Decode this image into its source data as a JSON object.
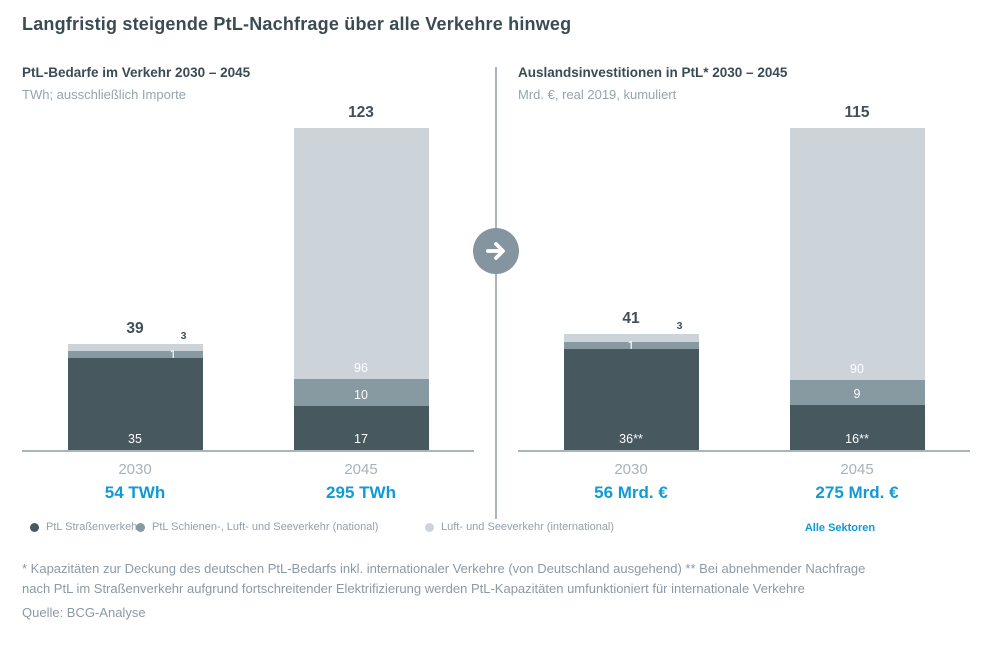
{
  "title": "Langfristig steigende PtL-Nachfrage über alle Verkehre hinweg",
  "colors": {
    "accent_blue": "#109ad6",
    "bar_dark": "#47585f",
    "bar_medium": "#8799a1",
    "bar_light": "#ccd4da",
    "axis_gray": "#a9b5bc",
    "arrow_circle_gray": "#8495a0",
    "heading_dark": "#3b4b53",
    "muted_gray": "#97a4ac"
  },
  "arrow_icon": "right-arrow",
  "chart_data": [
    {
      "type": "bar",
      "stacked": true,
      "title": "PtL-Bedarfe im Verkehr 2030 – 2045",
      "subtitle": "TWh; ausschließlich Importe",
      "unit": "TWh",
      "categories": [
        "2030",
        "2045"
      ],
      "series": [
        {
          "name": "PtL Straßenverkehr",
          "values": [
            35,
            17
          ]
        },
        {
          "name": "PtL Schienen-, Luft- und Seeverkehr (national)",
          "values": [
            1,
            10
          ]
        },
        {
          "name": "Luft- und Seeverkehr (international)",
          "values": [
            3,
            96
          ]
        }
      ],
      "columns": [
        {
          "year": "2030",
          "total": "39",
          "sum": "54 TWh",
          "segments": [
            {
              "value": 35,
              "label": "35",
              "color_key": "bar_dark"
            },
            {
              "value": 1,
              "label": "1",
              "color_key": "bar_medium",
              "label_pos": "overlay-right"
            },
            {
              "value": 3,
              "label": "3",
              "color_key": "bar_light",
              "label_pos": "outside-top"
            }
          ]
        },
        {
          "year": "2045",
          "total": "123",
          "sum": "295 TWh",
          "segments": [
            {
              "value": 17,
              "label": "17",
              "color_key": "bar_dark"
            },
            {
              "value": 10,
              "label": "10",
              "color_key": "bar_medium"
            },
            {
              "value": 96,
              "label": "96",
              "color_key": "bar_light"
            }
          ]
        }
      ]
    },
    {
      "type": "bar",
      "stacked": true,
      "title": "Auslandsinvestitionen in PtL* 2030 – 2045",
      "subtitle": "Mrd. €, real 2019, kumuliert",
      "unit": "Mrd. €",
      "categories": [
        "2030",
        "2045"
      ],
      "series": [
        {
          "name": "PtL Straßenverkehr",
          "values": [
            36,
            16
          ]
        },
        {
          "name": "PtL Schienen-, Luft- und Seeverkehr (national)",
          "values": [
            1,
            9
          ]
        },
        {
          "name": "Luft- und Seeverkehr (international)",
          "values": [
            3,
            90
          ]
        }
      ],
      "columns": [
        {
          "year": "2030",
          "total": "41",
          "sum": "56 Mrd. €",
          "segments": [
            {
              "value": 36,
              "label": "36**",
              "color_key": "bar_dark"
            },
            {
              "value": 1,
              "label": "1",
              "color_key": "bar_medium",
              "label_pos": "overlay-center"
            },
            {
              "value": 3,
              "label": "3",
              "color_key": "bar_light",
              "label_pos": "outside-top"
            }
          ]
        },
        {
          "year": "2045",
          "total": "115",
          "sum": "275 Mrd. €",
          "segments": [
            {
              "value": 16,
              "label": "16**",
              "color_key": "bar_dark"
            },
            {
              "value": 9,
              "label": "9",
              "color_key": "bar_medium"
            },
            {
              "value": 90,
              "label": "90",
              "color_key": "bar_light"
            }
          ]
        }
      ]
    }
  ],
  "legend": {
    "items": [
      {
        "label": "PtL Straßenverkehr",
        "color_key": "bar_dark"
      },
      {
        "label": "PtL Schienen-, Luft- und Seeverkehr (national)",
        "color_key": "bar_medium"
      },
      {
        "label": "Luft- und Seeverkehr (international)",
        "color_key": "bar_light"
      }
    ],
    "highlight": "Alle Sektoren"
  },
  "footnotes": [
    "* Kapazitäten zur Deckung des deutschen PtL-Bedarfs inkl. internationaler Verkehre (von Deutschland ausgehend) ** Bei abnehmender Nachfrage",
    "nach PtL im Straßenverkehr aufgrund fortschreitender Elektrifizierung werden PtL-Kapazitäten umfunktioniert für internationale Verkehre"
  ],
  "source": "Quelle: BCG-Analyse"
}
